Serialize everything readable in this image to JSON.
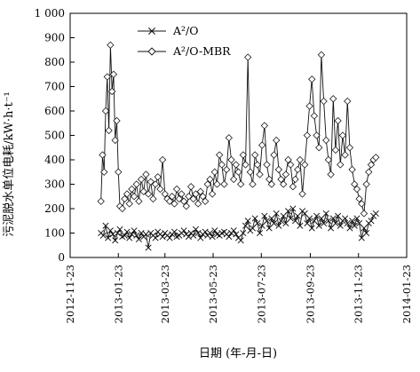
{
  "chart_data": {
    "type": "line",
    "xlabel": "日期 (年-月-日)",
    "ylabel": "污泥脱水单位电耗/kW·h·t⁻¹",
    "ylim": [
      0,
      1000
    ],
    "y_ticks": [
      "0",
      "100",
      "200",
      "300",
      "400",
      "500",
      "600",
      "700",
      "800",
      "900",
      "1 000"
    ],
    "x_range": [
      "2012-11-23",
      "2014-01-23"
    ],
    "x_ticks": [
      "2012-11-23",
      "2013-01-23",
      "2013-03-23",
      "2013-05-23",
      "2013-07-23",
      "2013-09-23",
      "2013-11-23",
      "2014-01-23"
    ],
    "grid": false,
    "legend_position": "top-center",
    "series": [
      {
        "name": "A²/O",
        "marker": "cross",
        "x": [
          "2013-01-01",
          "2013-01-04",
          "2013-01-07",
          "2013-01-10",
          "2013-01-13",
          "2013-01-16",
          "2013-01-19",
          "2013-01-22",
          "2013-01-25",
          "2013-01-28",
          "2013-01-31",
          "2013-02-03",
          "2013-02-06",
          "2013-02-09",
          "2013-02-12",
          "2013-02-15",
          "2013-02-18",
          "2013-02-21",
          "2013-02-24",
          "2013-02-27",
          "2013-03-02",
          "2013-03-05",
          "2013-03-08",
          "2013-03-11",
          "2013-03-14",
          "2013-03-17",
          "2013-03-20",
          "2013-03-23",
          "2013-03-26",
          "2013-03-29",
          "2013-04-01",
          "2013-04-04",
          "2013-04-07",
          "2013-04-10",
          "2013-04-13",
          "2013-04-16",
          "2013-04-19",
          "2013-04-22",
          "2013-04-25",
          "2013-04-28",
          "2013-05-01",
          "2013-05-04",
          "2013-05-07",
          "2013-05-10",
          "2013-05-13",
          "2013-05-16",
          "2013-05-19",
          "2013-05-22",
          "2013-05-25",
          "2013-05-28",
          "2013-05-31",
          "2013-06-03",
          "2013-06-06",
          "2013-06-09",
          "2013-06-12",
          "2013-06-15",
          "2013-06-18",
          "2013-06-21",
          "2013-06-24",
          "2013-06-27",
          "2013-06-30",
          "2013-07-03",
          "2013-07-06",
          "2013-07-09",
          "2013-07-12",
          "2013-07-15",
          "2013-07-18",
          "2013-07-21",
          "2013-07-24",
          "2013-07-27",
          "2013-07-30",
          "2013-08-02",
          "2013-08-05",
          "2013-08-08",
          "2013-08-11",
          "2013-08-14",
          "2013-08-17",
          "2013-08-20",
          "2013-08-23",
          "2013-08-26",
          "2013-08-29",
          "2013-09-01",
          "2013-09-04",
          "2013-09-07",
          "2013-09-10",
          "2013-09-13",
          "2013-09-16",
          "2013-09-19",
          "2013-09-22",
          "2013-09-25",
          "2013-09-28",
          "2013-10-01",
          "2013-10-04",
          "2013-10-07",
          "2013-10-10",
          "2013-10-13",
          "2013-10-16",
          "2013-10-19",
          "2013-10-22",
          "2013-10-25",
          "2013-10-28",
          "2013-10-31",
          "2013-11-03",
          "2013-11-06",
          "2013-11-09",
          "2013-11-12",
          "2013-11-15",
          "2013-11-18",
          "2013-11-21",
          "2013-11-24",
          "2013-11-27",
          "2013-11-30",
          "2013-12-03",
          "2013-12-06",
          "2013-12-09",
          "2013-12-12",
          "2013-12-15"
        ],
        "y": [
          100,
          90,
          130,
          80,
          110,
          95,
          70,
          100,
          115,
          85,
          90,
          105,
          80,
          95,
          110,
          90,
          75,
          100,
          85,
          95,
          40,
          100,
          90,
          80,
          105,
          95,
          85,
          100,
          90,
          80,
          95,
          105,
          85,
          90,
          100,
          110,
          95,
          85,
          100,
          90,
          115,
          100,
          80,
          95,
          105,
          90,
          100,
          85,
          110,
          95,
          90,
          100,
          105,
          95,
          85,
          100,
          110,
          95,
          80,
          70,
          100,
          130,
          150,
          110,
          120,
          160,
          140,
          100,
          130,
          170,
          150,
          120,
          160,
          140,
          180,
          130,
          150,
          170,
          140,
          190,
          160,
          200,
          150,
          170,
          130,
          190,
          180,
          140,
          160,
          120,
          150,
          170,
          130,
          160,
          140,
          180,
          150,
          120,
          160,
          140,
          170,
          130,
          150,
          160,
          140,
          120,
          150,
          130,
          160,
          140,
          80,
          120,
          100,
          140,
          150,
          170,
          180
        ]
      },
      {
        "name": "A²/O-MBR",
        "marker": "diamond",
        "x": [
          "2013-01-01",
          "2013-01-03",
          "2013-01-05",
          "2013-01-07",
          "2013-01-09",
          "2013-01-11",
          "2013-01-13",
          "2013-01-15",
          "2013-01-17",
          "2013-01-19",
          "2013-01-21",
          "2013-01-23",
          "2013-01-25",
          "2013-01-28",
          "2013-01-31",
          "2013-02-03",
          "2013-02-06",
          "2013-02-09",
          "2013-02-12",
          "2013-02-15",
          "2013-02-18",
          "2013-02-21",
          "2013-02-24",
          "2013-02-27",
          "2013-03-02",
          "2013-03-05",
          "2013-03-08",
          "2013-03-11",
          "2013-03-14",
          "2013-03-17",
          "2013-03-20",
          "2013-03-23",
          "2013-03-26",
          "2013-03-29",
          "2013-04-01",
          "2013-04-04",
          "2013-04-07",
          "2013-04-10",
          "2013-04-13",
          "2013-04-16",
          "2013-04-19",
          "2013-04-22",
          "2013-04-25",
          "2013-04-28",
          "2013-05-01",
          "2013-05-04",
          "2013-05-07",
          "2013-05-10",
          "2013-05-13",
          "2013-05-16",
          "2013-05-19",
          "2013-05-22",
          "2013-05-25",
          "2013-05-28",
          "2013-05-31",
          "2013-06-03",
          "2013-06-06",
          "2013-06-09",
          "2013-06-12",
          "2013-06-15",
          "2013-06-18",
          "2013-06-21",
          "2013-06-24",
          "2013-06-27",
          "2013-06-30",
          "2013-07-03",
          "2013-07-06",
          "2013-07-09",
          "2013-07-12",
          "2013-07-15",
          "2013-07-18",
          "2013-07-21",
          "2013-07-24",
          "2013-07-27",
          "2013-07-30",
          "2013-08-02",
          "2013-08-05",
          "2013-08-08",
          "2013-08-11",
          "2013-08-14",
          "2013-08-17",
          "2013-08-20",
          "2013-08-23",
          "2013-08-26",
          "2013-08-29",
          "2013-09-01",
          "2013-09-04",
          "2013-09-07",
          "2013-09-10",
          "2013-09-13",
          "2013-09-16",
          "2013-09-19",
          "2013-09-22",
          "2013-09-25",
          "2013-09-28",
          "2013-10-01",
          "2013-10-04",
          "2013-10-07",
          "2013-10-10",
          "2013-10-13",
          "2013-10-16",
          "2013-10-19",
          "2013-10-22",
          "2013-10-25",
          "2013-10-28",
          "2013-10-31",
          "2013-11-03",
          "2013-11-06",
          "2013-11-09",
          "2013-11-12",
          "2013-11-15",
          "2013-11-18",
          "2013-11-21",
          "2013-11-24",
          "2013-11-27",
          "2013-11-30",
          "2013-12-03",
          "2013-12-06",
          "2013-12-09",
          "2013-12-12",
          "2013-12-15"
        ],
        "y": [
          230,
          420,
          350,
          600,
          740,
          520,
          870,
          680,
          750,
          480,
          560,
          350,
          210,
          200,
          240,
          260,
          220,
          280,
          250,
          300,
          230,
          320,
          270,
          340,
          260,
          310,
          240,
          300,
          330,
          280,
          400,
          260,
          240,
          230,
          250,
          220,
          280,
          240,
          260,
          230,
          210,
          250,
          290,
          240,
          260,
          220,
          270,
          250,
          230,
          300,
          320,
          260,
          350,
          300,
          420,
          380,
          300,
          360,
          490,
          400,
          320,
          380,
          350,
          300,
          420,
          380,
          820,
          350,
          300,
          420,
          380,
          340,
          460,
          540,
          380,
          320,
          300,
          420,
          480,
          360,
          320,
          300,
          340,
          400,
          380,
          290,
          320,
          360,
          400,
          260,
          380,
          500,
          620,
          730,
          580,
          500,
          450,
          830,
          640,
          480,
          400,
          340,
          650,
          440,
          560,
          380,
          500,
          420,
          640,
          450,
          360,
          300,
          280,
          240,
          220,
          180,
          300,
          350,
          380,
          400,
          410
        ]
      }
    ]
  }
}
